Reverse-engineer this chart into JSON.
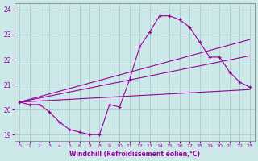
{
  "xlabel": "Windchill (Refroidissement éolien,°C)",
  "bg_color": "#cce8e8",
  "line_color": "#990099",
  "grid_color": "#aacccc",
  "xlim_min": -0.5,
  "xlim_max": 23.5,
  "ylim_min": 18.75,
  "ylim_max": 24.25,
  "xticks": [
    0,
    1,
    2,
    3,
    4,
    5,
    6,
    7,
    8,
    9,
    10,
    11,
    12,
    13,
    14,
    15,
    16,
    17,
    18,
    19,
    20,
    21,
    22,
    23
  ],
  "yticks": [
    19,
    20,
    21,
    22,
    23,
    24
  ],
  "curve1_x": [
    0,
    1,
    2,
    3,
    4,
    5,
    6,
    7,
    8,
    9,
    10,
    11,
    12,
    13,
    14,
    15,
    16,
    17,
    18,
    19,
    20,
    21,
    22,
    23
  ],
  "curve1_y": [
    20.3,
    20.2,
    20.2,
    19.9,
    19.5,
    19.2,
    19.1,
    19.0,
    19.0,
    20.2,
    20.1,
    21.2,
    22.5,
    23.1,
    23.75,
    23.75,
    23.6,
    23.3,
    22.7,
    22.1,
    22.1,
    21.5,
    21.1,
    20.9
  ],
  "curve2_x": [
    0,
    23
  ],
  "curve2_y": [
    20.3,
    22.8
  ],
  "curve3_x": [
    0,
    23
  ],
  "curve3_y": [
    20.3,
    22.15
  ],
  "curve4_x": [
    0,
    23
  ],
  "curve4_y": [
    20.3,
    20.8
  ]
}
